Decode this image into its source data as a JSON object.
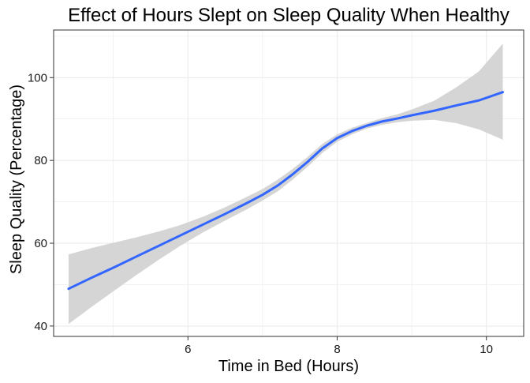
{
  "chart_data": {
    "type": "line",
    "title": "Effect of Hours Slept on Sleep Quality When Healthy",
    "xlabel": "Time in Bed (Hours)",
    "ylabel": "Sleep Quality (Percentage)",
    "xlim": [
      4.2,
      10.5
    ],
    "ylim": [
      37.5,
      111.5
    ],
    "xticks": [
      6,
      8,
      10
    ],
    "xtick_labels": [
      "6",
      "8",
      "10"
    ],
    "yticks": [
      40,
      60,
      80,
      100
    ],
    "ytick_labels": [
      "40",
      "60",
      "80",
      "100"
    ],
    "grid": true,
    "legend": "none",
    "series": [
      {
        "x": [
          4.4,
          4.7,
          5.0,
          5.3,
          5.6,
          5.9,
          6.2,
          6.5,
          6.8,
          7.0,
          7.2,
          7.4,
          7.6,
          7.8,
          8.0,
          8.2,
          8.4,
          8.6,
          8.8,
          9.0,
          9.3,
          9.6,
          9.9,
          10.22
        ],
        "values": [
          49,
          51.6,
          54.1,
          56.7,
          59.3,
          61.9,
          64.5,
          67.1,
          69.8,
          71.7,
          73.9,
          76.6,
          79.6,
          82.9,
          85.4,
          87.1,
          88.4,
          89.4,
          90.1,
          90.9,
          92.0,
          93.3,
          94.5,
          96.5
        ],
        "ci_lower": [
          40.5,
          44.5,
          48.4,
          52.2,
          55.9,
          59.4,
          62.6,
          65.5,
          68.3,
          70.3,
          72.5,
          75.3,
          78.4,
          81.8,
          84.5,
          86.3,
          87.7,
          88.6,
          89.2,
          89.6,
          89.8,
          89.0,
          87.5,
          85.0
        ],
        "ci_upper": [
          57.3,
          58.8,
          60.1,
          61.4,
          62.8,
          64.4,
          66.4,
          68.7,
          71.3,
          73.1,
          75.3,
          77.9,
          80.8,
          84.0,
          86.3,
          87.9,
          89.1,
          90.2,
          91.1,
          92.3,
          94.4,
          97.7,
          101.5,
          108.2
        ]
      }
    ],
    "colors": {
      "line": "#3366ff",
      "ribbon": "#d3d3d3",
      "grid": "#ebebeb",
      "panel_border": "#333333",
      "tick": "#333333"
    }
  }
}
